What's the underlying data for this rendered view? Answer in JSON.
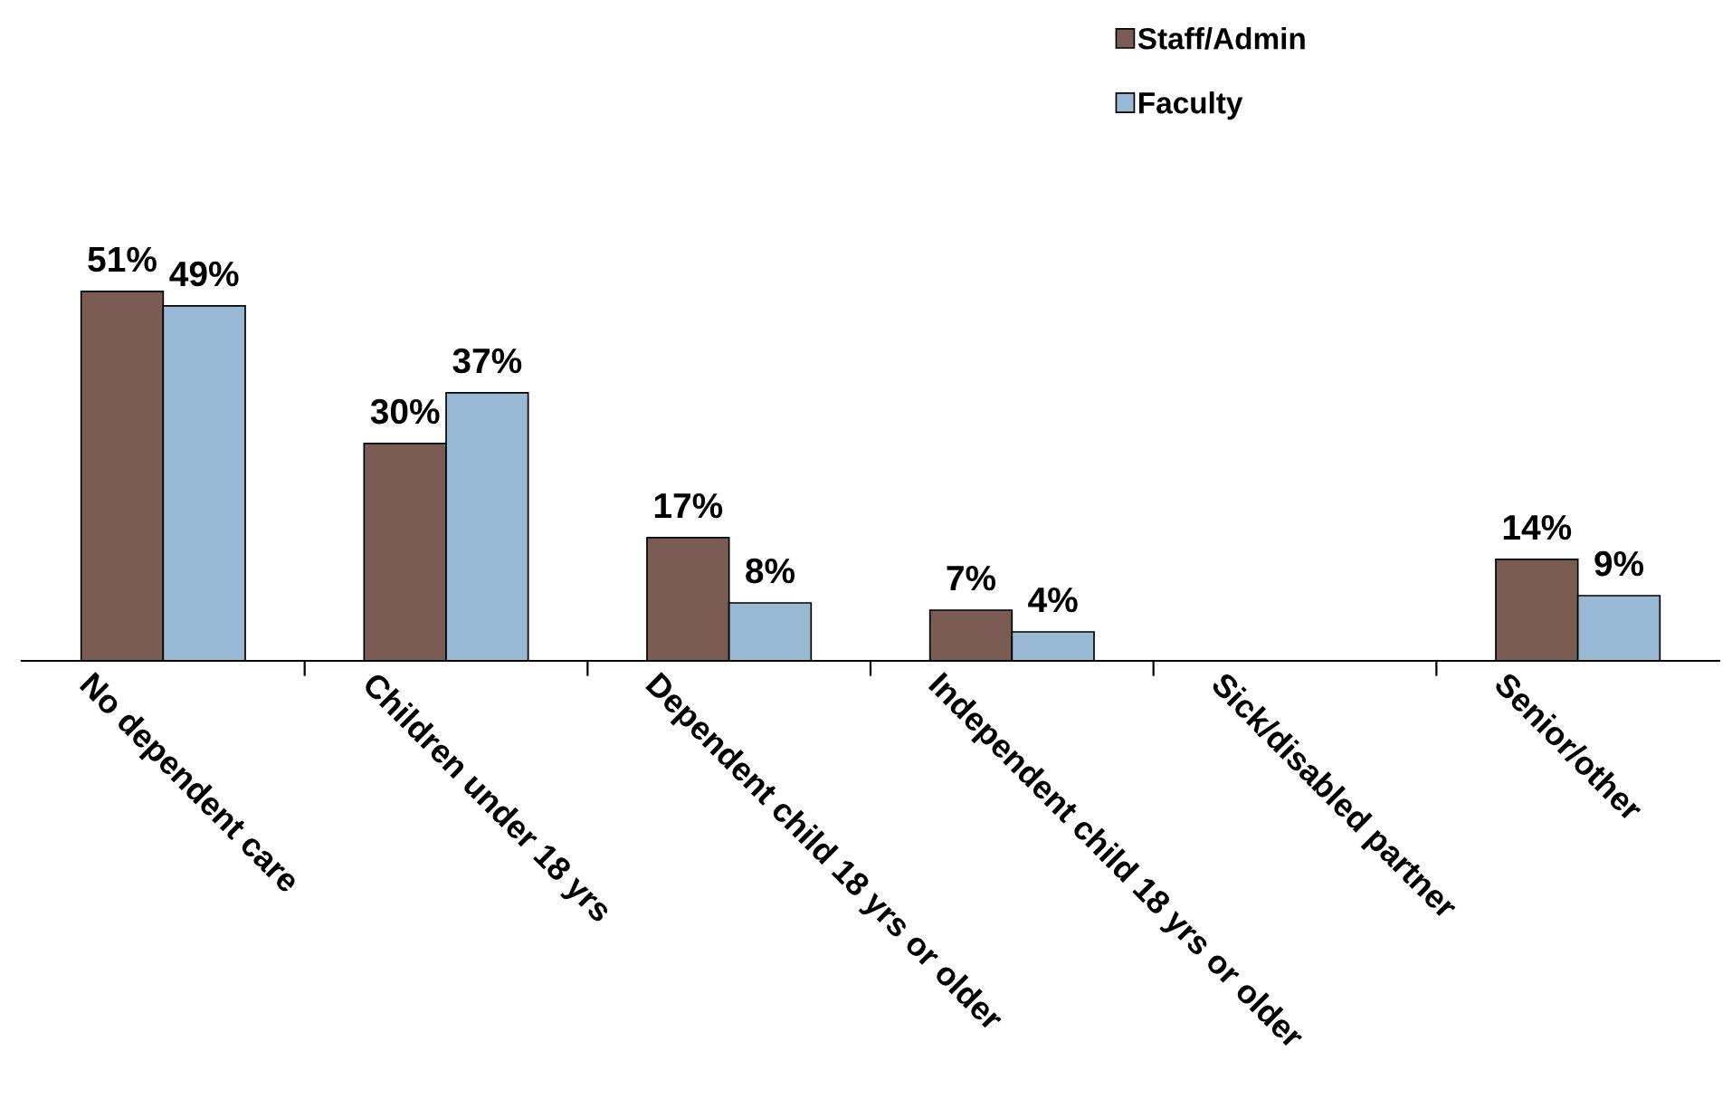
{
  "chart_data": {
    "type": "bar",
    "categories": [
      "No dependent care",
      "Children under 18 yrs",
      "Dependent child 18 yrs or older",
      "Independent child 18 yrs or older",
      "Sick/disabled partner",
      "Senior/other"
    ],
    "series": [
      {
        "name": "Staff/Admin",
        "color": "#7b5c52",
        "values": [
          51,
          30,
          17,
          7,
          null,
          14
        ],
        "value_labels": [
          "51%",
          "30%",
          "17%",
          "7%",
          null,
          "14%"
        ]
      },
      {
        "name": "Faculty",
        "color": "#99b8d4",
        "values": [
          49,
          37,
          8,
          4,
          null,
          9
        ],
        "value_labels": [
          "49%",
          "37%",
          "8%",
          "4%",
          null,
          "9%"
        ]
      }
    ],
    "legend": "top right",
    "grid": false,
    "tick_labels": "x"
  }
}
